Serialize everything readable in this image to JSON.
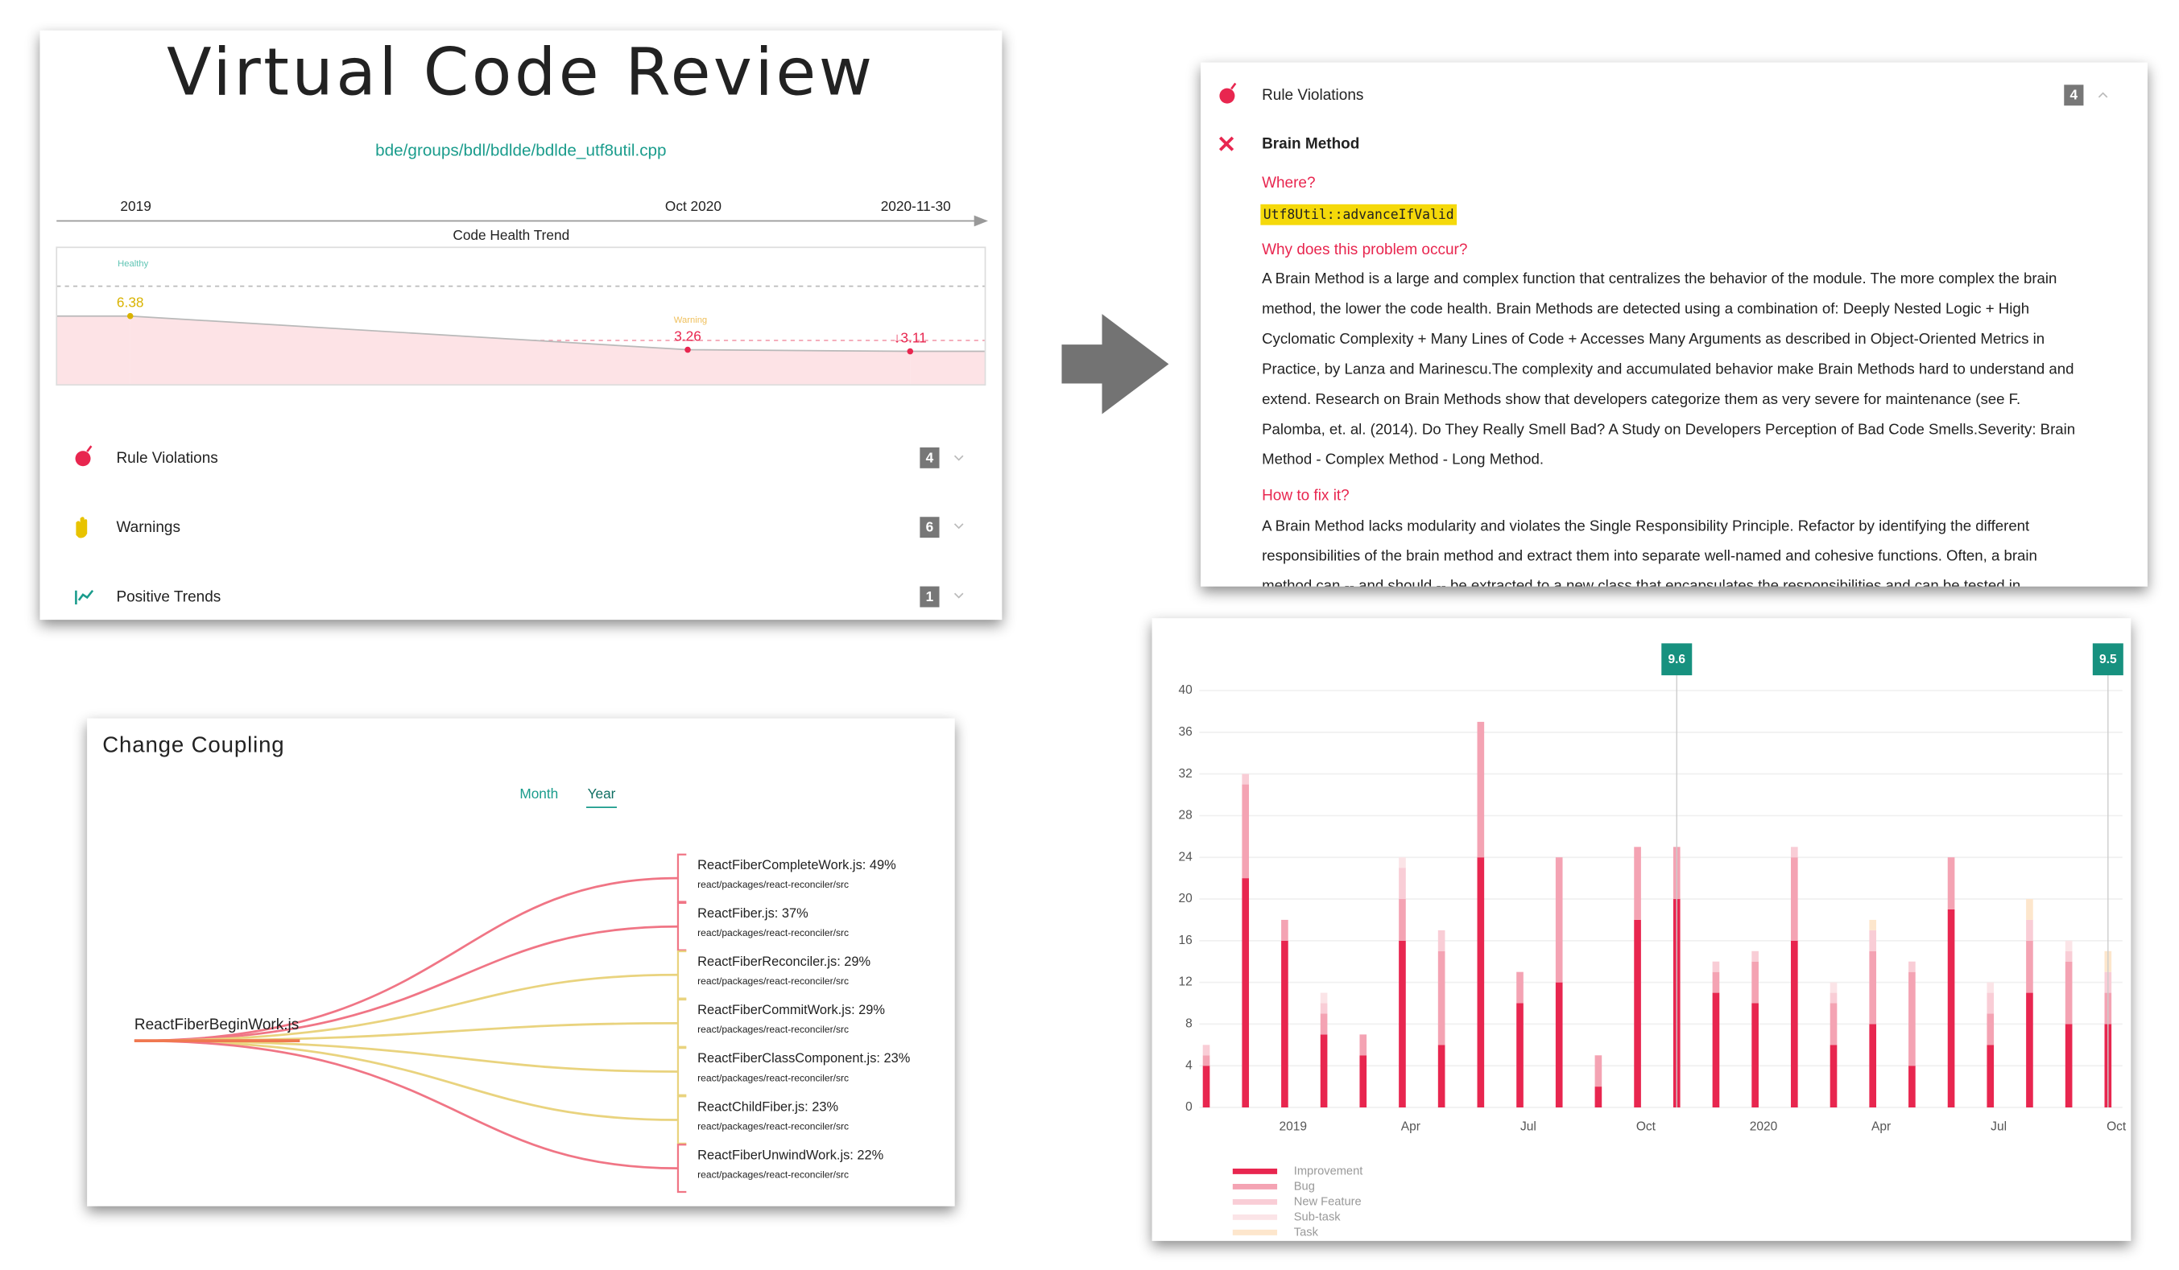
{
  "review": {
    "title": "Virtual Code Review",
    "file": "bde/groups/bdl/bdlde/bdlde_utf8util.cpp",
    "findings": [
      {
        "label": "Rule Violations",
        "count": 4
      },
      {
        "label": "Warnings",
        "count": 6
      },
      {
        "label": "Positive Trends",
        "count": 1
      }
    ]
  },
  "chart_data": [
    {
      "type": "line",
      "title": "Code Health Trend",
      "categories": [
        "2019",
        "Oct 2020",
        "2020-11-30"
      ],
      "values": [
        6.38,
        3.26,
        3.11
      ],
      "value_labels": [
        "6.38",
        "3.26",
        "↓3.11"
      ],
      "point_colors": [
        "#d9b300",
        "#e8264f",
        "#e8264f"
      ],
      "annotations": [
        {
          "text": "Healthy",
          "color": "#5fc4b4"
        },
        {
          "text": "Warning",
          "color": "#efbf5a"
        }
      ],
      "ylim": [
        0,
        12.75
      ],
      "color": "#b9b9b9",
      "fill": "#fde3e6"
    },
    {
      "type": "bar",
      "stacked": true,
      "categories": [
        null,
        null,
        "2019",
        null,
        null,
        "Apr",
        null,
        null,
        "Jul",
        null,
        null,
        "Oct",
        null,
        null,
        "2020",
        null,
        null,
        "Apr",
        null,
        null,
        "Jul",
        null,
        null,
        "Oct"
      ],
      "series": [
        {
          "name": "Improvement",
          "color": "#e8264f",
          "values": [
            4,
            22,
            16,
            7,
            5,
            16,
            6,
            24,
            10,
            12,
            2,
            18,
            20,
            11,
            10,
            16,
            6,
            8,
            4,
            19,
            6,
            11,
            8,
            8
          ]
        },
        {
          "name": "Bug",
          "color": "#f4a3b3",
          "values": [
            1,
            9,
            2,
            2,
            2,
            4,
            9,
            13,
            3,
            12,
            3,
            7,
            5,
            2,
            4,
            8,
            4,
            7,
            9,
            5,
            3,
            5,
            6,
            3
          ]
        },
        {
          "name": "New Feature",
          "color": "#f9cdd6",
          "values": [
            1,
            1,
            0,
            1,
            0,
            3,
            2,
            0,
            0,
            0,
            0,
            0,
            0,
            1,
            1,
            1,
            1,
            2,
            1,
            0,
            2,
            2,
            1,
            2
          ]
        },
        {
          "name": "Sub-task",
          "color": "#fbe4e7",
          "values": [
            0,
            0,
            0,
            1,
            0,
            1,
            0,
            0,
            0,
            0,
            0,
            0,
            0,
            0,
            0,
            0,
            1,
            0,
            0,
            0,
            1,
            0,
            1,
            0
          ]
        },
        {
          "name": "Task",
          "color": "#fde6cc",
          "values": [
            0,
            0,
            0,
            0,
            0,
            0,
            0,
            0,
            0,
            0,
            0,
            0,
            0,
            0,
            0,
            0,
            0,
            1,
            0,
            0,
            0,
            2,
            0,
            2
          ]
        }
      ],
      "markers": [
        null,
        null,
        null,
        null,
        null,
        null,
        null,
        null,
        null,
        null,
        null,
        null,
        9.6,
        null,
        null,
        null,
        null,
        null,
        null,
        null,
        null,
        null,
        null,
        9.5
      ],
      "marker_color": "#17917f",
      "ylim": [
        0,
        40
      ],
      "yticks": [
        0,
        4,
        8,
        12,
        16,
        20,
        24,
        28,
        32,
        36,
        40
      ],
      "grid": true,
      "legend": "bottom-left"
    }
  ],
  "rule_detail": {
    "category": "Rule Violations",
    "count": 4,
    "rule": "Brain Method",
    "where_heading": "Where?",
    "where": "Utf8Util::advanceIfValid",
    "why_heading": "Why does this problem occur?",
    "why_lines": [
      "A Brain Method is a large and complex function that centralizes the behavior of the module. The more complex the brain",
      "method, the lower the code health. Brain Methods are detected using a combination of: Deeply Nested Logic + High",
      "Cyclomatic Complexity + Many Lines of Code + Accesses Many Arguments as described in Object-Oriented Metrics in",
      "Practice, by Lanza and Marinescu.The complexity and accumulated behavior make Brain Methods hard to understand and",
      "extend. Research on Brain Methods show that developers categorize them as very severe for maintenance (see F.",
      "Palomba, et. al. (2014). Do They Really Smell Bad? A Study on Developers Perception of Bad Code Smells.Severity: Brain",
      "Method - Complex Method - Long Method."
    ],
    "fix_heading": "How to fix it?",
    "fix_lines": [
      "A Brain Method lacks modularity and violates the Single Responsibility Principle. Refactor by identifying the different",
      "responsibilities of the brain method and extract them into separate well-named and cohesive functions. Often, a brain",
      "method can -- and should -- be extracted to a new class that encapsulates the responsibilities and can be tested in"
    ]
  },
  "change_coupling": {
    "title": "Change Coupling",
    "tabs": [
      "Month",
      "Year"
    ],
    "active_tab": 1,
    "source": "ReactFiberBeginWork.js",
    "targets": [
      {
        "label": "ReactFiberCompleteWork.js: 49%",
        "path": "react/packages/react-reconciler/src",
        "color": "#f07585"
      },
      {
        "label": "ReactFiber.js: 37%",
        "path": "react/packages/react-reconciler/src",
        "color": "#f07585"
      },
      {
        "label": "ReactFiberReconciler.js: 29%",
        "path": "react/packages/react-reconciler/src",
        "color": "#e9d37e"
      },
      {
        "label": "ReactFiberCommitWork.js: 29%",
        "path": "react/packages/react-reconciler/src",
        "color": "#e9d37e"
      },
      {
        "label": "ReactFiberClassComponent.js: 23%",
        "path": "react/packages/react-reconciler/src",
        "color": "#e9d37e"
      },
      {
        "label": "ReactChildFiber.js: 23%",
        "path": "react/packages/react-reconciler/src",
        "color": "#e9d37e"
      },
      {
        "label": "ReactFiberUnwindWork.js: 22%",
        "path": "react/packages/react-reconciler/src",
        "color": "#f07585"
      }
    ]
  }
}
